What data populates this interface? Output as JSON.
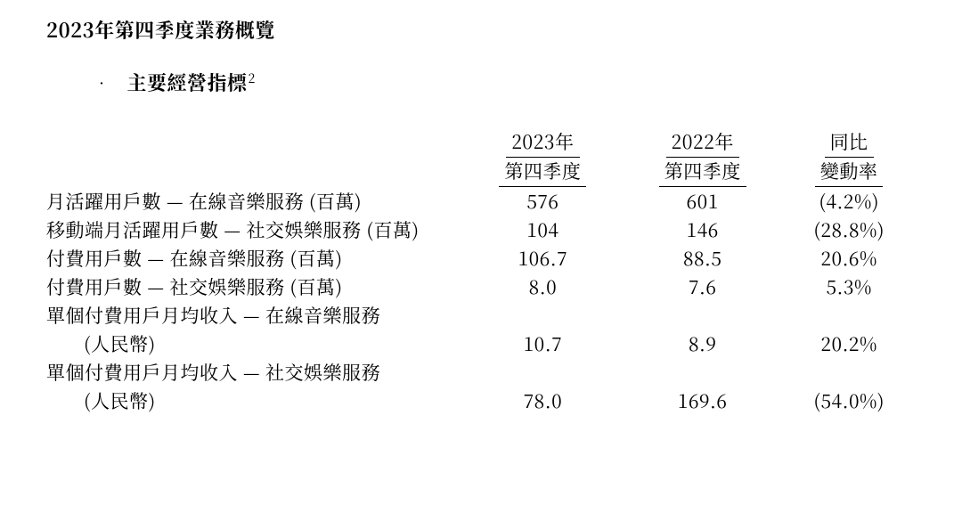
{
  "text_color": "#000000",
  "background_color": "#ffffff",
  "heading": "2023年第四季度業務概覽",
  "subheading": "主要經營指標",
  "footnote_mark": "2",
  "table": {
    "type": "table",
    "font_size_pt": 16,
    "header_underline": true,
    "columns": {
      "col1": {
        "line1": "2023年",
        "line2": "第四季度"
      },
      "col2": {
        "line1": "2022年",
        "line2": "第四季度"
      },
      "col3": {
        "line1": "同比",
        "line2": "變動率"
      }
    },
    "rows": [
      {
        "label": "月活躍用戶數 — 在線音樂服務 (百萬)",
        "c1": "576",
        "c2": "601",
        "c3": "(4.2%)"
      },
      {
        "label": "移動端月活躍用戶數 — 社交娛樂服務 (百萬)",
        "c1": "104",
        "c2": "146",
        "c3": "(28.8%)"
      },
      {
        "label": "付費用戶數 — 在線音樂服務 (百萬)",
        "c1": "106.7",
        "c2": "88.5",
        "c3": "20.6%"
      },
      {
        "label": "付費用戶數 — 社交娛樂服務 (百萬)",
        "c1": "8.0",
        "c2": "7.6",
        "c3": "5.3%"
      },
      {
        "label": "單個付費用戶月均收入 — 在線音樂服務",
        "c1": "",
        "c2": "",
        "c3": ""
      },
      {
        "label_indent": true,
        "label": "(人民幣)",
        "c1": "10.7",
        "c2": "8.9",
        "c3": "20.2%"
      },
      {
        "label": "單個付費用戶月均收入 — 社交娛樂服務",
        "c1": "",
        "c2": "",
        "c3": ""
      },
      {
        "label_indent": true,
        "label": "(人民幣)",
        "c1": "78.0",
        "c2": "169.6",
        "c3": "(54.0%)"
      }
    ]
  }
}
